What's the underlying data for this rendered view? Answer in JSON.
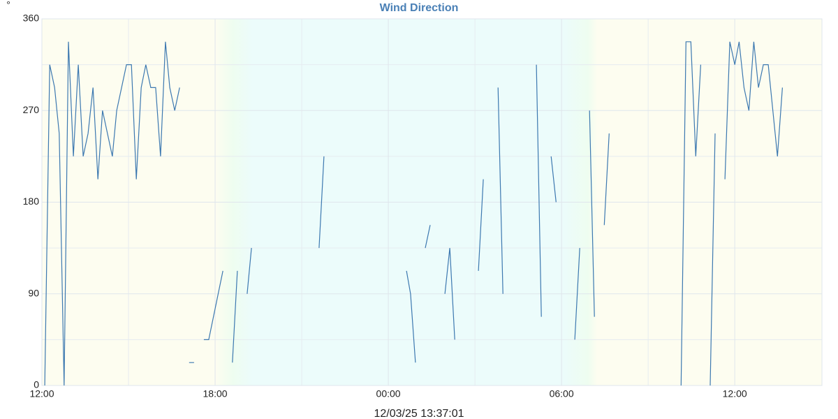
{
  "chart_data": {
    "type": "line",
    "title": "Wind Direction",
    "y_label": "°",
    "footer": "12/03/25 13:37:01",
    "x": [
      0.1,
      0.27,
      0.44,
      0.6,
      0.77,
      0.92,
      1.09,
      1.26,
      1.43,
      1.6,
      1.77,
      1.94,
      2.1,
      2.44,
      2.59,
      2.93,
      3.1,
      3.27,
      3.44,
      3.6,
      3.77,
      3.94,
      4.11,
      4.28,
      4.43,
      4.6,
      4.77,
      4.9,
      5.1,
      5.27,
      5.4,
      5.61,
      5.78,
      6.27,
      6.4,
      6.6,
      6.77,
      6.9,
      7.11,
      7.26,
      8.4,
      9.6,
      9.77,
      11.2,
      12.63,
      12.77,
      12.94,
      13.1,
      13.28,
      13.45,
      13.7,
      13.96,
      14.13,
      14.3,
      14.7,
      15.12,
      15.29,
      15.5,
      15.8,
      15.97,
      16.5,
      17.13,
      17.3,
      17.5,
      17.64,
      17.81,
      18.1,
      18.46,
      18.63,
      18.8,
      18.97,
      19.14,
      19.3,
      19.48,
      19.65,
      20.9,
      22.14,
      22.31,
      22.48,
      22.65,
      22.82,
      23.0,
      23.15,
      23.32,
      23.5,
      23.66,
      23.83,
      24.0,
      24.15,
      24.32,
      24.49,
      24.66,
      24.82,
      24.99,
      25.16,
      25.48,
      25.65
    ],
    "series": [
      {
        "name": "Wind Direction",
        "color": "#3c78b0",
        "values": [
          0,
          315,
          292.5,
          247.5,
          0,
          337.5,
          225,
          315,
          225,
          247.5,
          292.5,
          202.5,
          270,
          225,
          270,
          315,
          315,
          202.5,
          292.5,
          315,
          292.5,
          292.5,
          225,
          337.5,
          292.5,
          270,
          292.5,
          null,
          22.5,
          22.5,
          null,
          45,
          45,
          112.5,
          null,
          22.5,
          112.5,
          null,
          90,
          135,
          null,
          135,
          225,
          null,
          112.5,
          90,
          22.5,
          null,
          135,
          157.5,
          null,
          90,
          135,
          45,
          null,
          112.5,
          202.5,
          null,
          292.5,
          90,
          null,
          315,
          67.5,
          null,
          225,
          180,
          null,
          45,
          135,
          null,
          270,
          67.5,
          null,
          157.5,
          247.5,
          null,
          0,
          337.5,
          337.5,
          225,
          315,
          null,
          0,
          247.5,
          null,
          202.5,
          337.5,
          315,
          337.5,
          292.5,
          270,
          337.5,
          292.5,
          315,
          315,
          225,
          292.5
        ]
      }
    ],
    "xlim": [
      0,
      27.02
    ],
    "xticks": [
      {
        "value": 0,
        "label": "12:00"
      },
      {
        "value": 6,
        "label": "18:00"
      },
      {
        "value": 12,
        "label": "00:00"
      },
      {
        "value": 18,
        "label": "06:00"
      },
      {
        "value": 24,
        "label": "12:00"
      }
    ],
    "minor_xticks": [
      3,
      9,
      15,
      21
    ],
    "ylim": [
      0,
      360
    ],
    "yticks": [
      0,
      90,
      180,
      270,
      360
    ],
    "minor_yticks": [
      45,
      135,
      225,
      315
    ],
    "grid": true
  }
}
